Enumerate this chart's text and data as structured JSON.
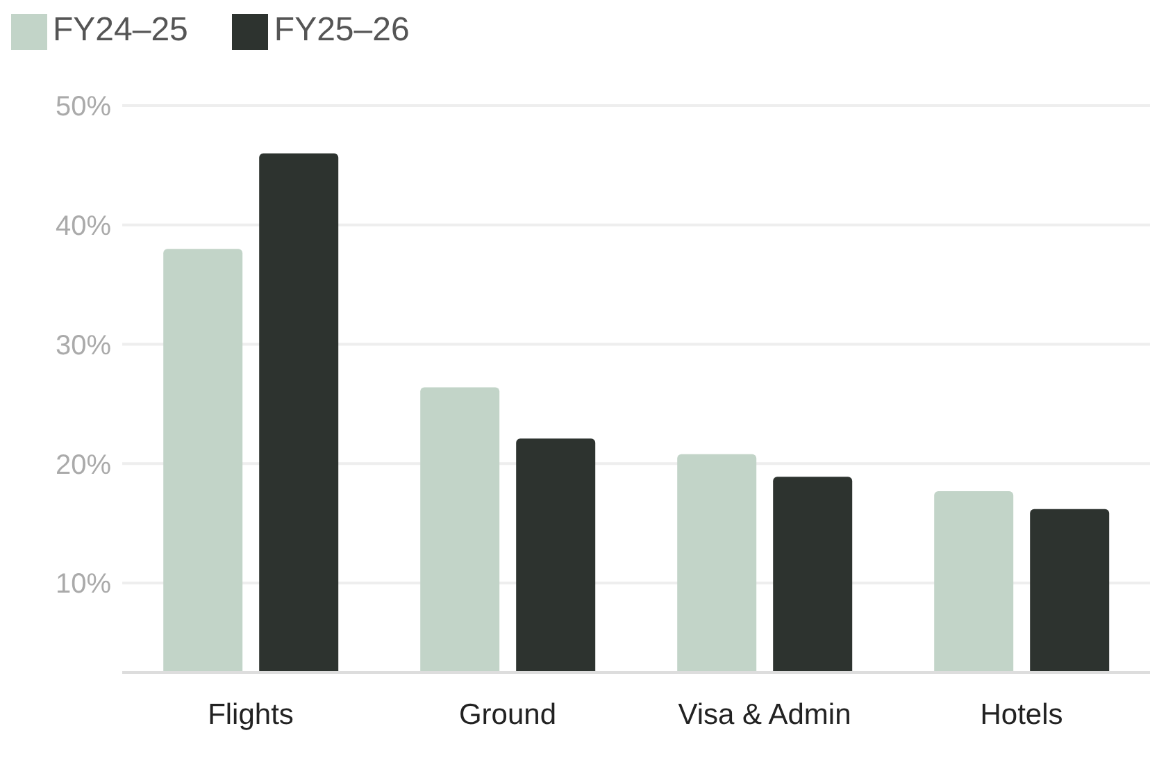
{
  "chart_data": {
    "type": "bar",
    "categories": [
      "Flights",
      "Ground",
      "Visa & Admin",
      "Hotels"
    ],
    "series": [
      {
        "name": "FY24–25",
        "color": "#c2d4c8",
        "values": [
          38,
          26.4,
          20.8,
          17.7
        ]
      },
      {
        "name": "FY25–26",
        "color": "#2d332f",
        "values": [
          46,
          22.1,
          18.9,
          16.2
        ]
      }
    ],
    "ylim": [
      2.5,
      50
    ],
    "yticks": [
      {
        "value": 10,
        "label": "10%"
      },
      {
        "value": 20,
        "label": "20%"
      },
      {
        "value": 30,
        "label": "30%"
      },
      {
        "value": 40,
        "label": "40%"
      },
      {
        "value": 50,
        "label": "50%"
      }
    ],
    "grid": "y",
    "legend": "top left"
  }
}
